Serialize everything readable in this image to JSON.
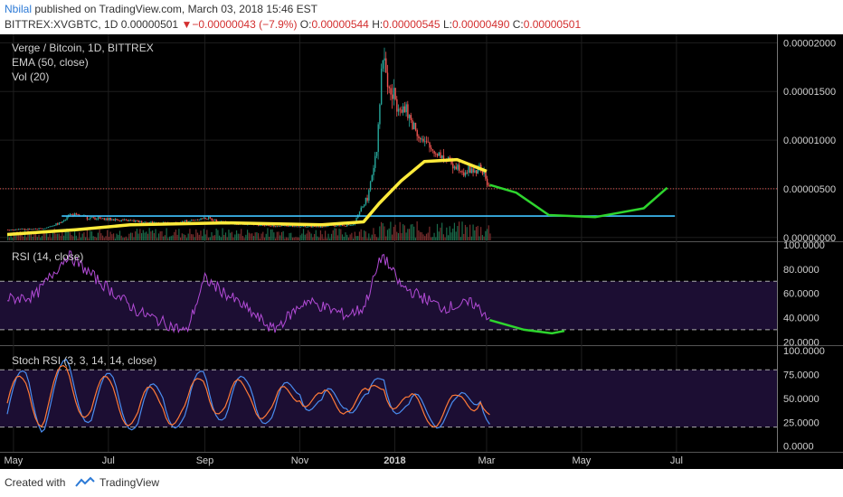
{
  "header": {
    "author": "Nbilal",
    "published": "published on TradingView.com, March 03, 2018 15:46 EST",
    "symbol": "BITTREX:XVGBTC, 1D",
    "last": "0.00000501",
    "change_arrow": "▼",
    "change": "−0.00000043 (−7.9%)",
    "o_label": "O:",
    "o_value": "0.00000544",
    "h_label": "H:",
    "h_value": "0.00000545",
    "l_label": "L:",
    "l_value": "0.00000490",
    "c_label": "C:",
    "c_value": "0.00000501"
  },
  "footer": {
    "created_with": "Created with",
    "brand": "TradingView"
  },
  "colors": {
    "background": "#000000",
    "grid": "#1e1e1e",
    "up": "#26a69a",
    "down": "#ef5350",
    "ema": "#ffeb3b",
    "support": "#40c4ff",
    "projection": "#2ed52e",
    "rsi": "#b24bd6",
    "stoch_k": "#4a8df0",
    "stoch_d": "#ff7a38",
    "band": "#1c0e33",
    "current_price": "#ef5350",
    "axis_text": "#d0d0d0",
    "icon": "#2c7ad6"
  },
  "chart_data": [
    {
      "type": "candlestick",
      "panel": "price",
      "labels": [
        "Verge / Bitcoin, 1D, BITTREX",
        "EMA (50, close)",
        "Vol (20)"
      ],
      "y_ticks": [
        "0.00002000",
        "0.00001500",
        "0.00001000",
        "0.00000500",
        "0.00000000"
      ],
      "y_tick_values": [
        2e-05,
        1.5e-05,
        1e-05,
        5e-06,
        0
      ],
      "ylim": [
        -3e-07,
        2.05e-05
      ],
      "current_price": 5.01e-06,
      "x_ticks": [
        "May",
        "Jul",
        "Sep",
        "Nov",
        "2018",
        "Mar",
        "May",
        "Jul"
      ],
      "x_tick_dates": [
        "2017-05-01",
        "2017-07-01",
        "2017-09-01",
        "2017-11-01",
        "2018-01-01",
        "2018-03-01",
        "2018-05-01",
        "2018-07-01"
      ],
      "x_range": [
        "2017-04-27",
        "2018-09-03"
      ],
      "price_path": [
        [
          "2017-04-27",
          8e-07
        ],
        [
          "2017-05-20",
          9e-07
        ],
        [
          "2017-06-01",
          1.6e-06
        ],
        [
          "2017-06-05",
          2.4e-06
        ],
        [
          "2017-06-20",
          2e-06
        ],
        [
          "2017-07-15",
          1.7e-06
        ],
        [
          "2017-08-10",
          1.4e-06
        ],
        [
          "2017-09-01",
          2e-06
        ],
        [
          "2017-09-20",
          1.4e-06
        ],
        [
          "2017-10-15",
          1.2e-06
        ],
        [
          "2017-11-10",
          1.1e-06
        ],
        [
          "2017-12-05",
          1.3e-06
        ],
        [
          "2017-12-15",
          4.5e-06
        ],
        [
          "2017-12-20",
          9.5e-06
        ],
        [
          "2017-12-24",
          1.9e-05
        ],
        [
          "2017-12-28",
          1.5e-05
        ],
        [
          "2018-01-05",
          1.35e-05
        ],
        [
          "2018-01-20",
          9.5e-06
        ],
        [
          "2018-02-05",
          7.8e-06
        ],
        [
          "2018-02-15",
          6.8e-06
        ],
        [
          "2018-02-25",
          7e-06
        ],
        [
          "2018-03-03",
          5e-06
        ]
      ],
      "ema50": [
        [
          "2017-04-27",
          3e-07
        ],
        [
          "2017-06-10",
          8e-07
        ],
        [
          "2017-07-15",
          1.3e-06
        ],
        [
          "2017-09-15",
          1.5e-06
        ],
        [
          "2017-11-15",
          1.3e-06
        ],
        [
          "2017-12-12",
          1.6e-06
        ],
        [
          "2017-12-22",
          3.5e-06
        ],
        [
          "2018-01-05",
          5.8e-06
        ],
        [
          "2018-01-20",
          7.8e-06
        ],
        [
          "2018-02-10",
          8e-06
        ],
        [
          "2018-03-01",
          6.8e-06
        ]
      ],
      "support_line": {
        "y": 2.2e-06,
        "from": "2017-06-01",
        "to": "2018-06-30"
      },
      "projection": [
        [
          "2018-03-03",
          5.4e-06
        ],
        [
          "2018-03-20",
          4.6e-06
        ],
        [
          "2018-04-10",
          2.3e-06
        ],
        [
          "2018-05-10",
          2.1e-06
        ],
        [
          "2018-06-10",
          3e-06
        ],
        [
          "2018-06-25",
          5.1e-06
        ]
      ]
    },
    {
      "type": "line",
      "panel": "rsi",
      "label": "RSI (14, close)",
      "y_ticks": [
        "100.0000",
        "80.0000",
        "60.0000",
        "40.0000",
        "20.0000"
      ],
      "y_tick_values": [
        100,
        80,
        60,
        40,
        20
      ],
      "ylim": [
        18,
        100
      ],
      "bands": [
        70,
        30
      ],
      "x": [
        "2017-04-27",
        "2017-05-15",
        "2017-06-05",
        "2017-06-25",
        "2017-07-20",
        "2017-08-20",
        "2017-09-01",
        "2017-09-25",
        "2017-10-15",
        "2017-11-05",
        "2017-12-01",
        "2017-12-12",
        "2017-12-24",
        "2018-01-05",
        "2018-02-01",
        "2018-02-20",
        "2018-03-03"
      ],
      "values": [
        55,
        58,
        92,
        70,
        45,
        28,
        72,
        50,
        30,
        54,
        42,
        48,
        92,
        66,
        48,
        52,
        40
      ],
      "projection": [
        [
          "2018-03-03",
          38
        ],
        [
          "2018-03-25",
          30
        ],
        [
          "2018-04-12",
          27
        ],
        [
          "2018-04-20",
          29
        ]
      ]
    },
    {
      "type": "line",
      "panel": "stoch_rsi",
      "label": "Stoch RSI (3, 3, 14, 14, close)",
      "y_ticks": [
        "100.0000",
        "75.0000",
        "50.0000",
        "25.0000",
        "0.0000"
      ],
      "y_tick_values": [
        100,
        75,
        50,
        25,
        0
      ],
      "ylim": [
        -5,
        102
      ],
      "bands": [
        80,
        20
      ],
      "x": [
        "2017-04-27",
        "2017-05-10",
        "2017-05-20",
        "2017-06-05",
        "2017-06-20",
        "2017-07-05",
        "2017-07-20",
        "2017-08-05",
        "2017-08-20",
        "2017-09-01",
        "2017-09-15",
        "2017-10-01",
        "2017-10-15",
        "2017-11-01",
        "2017-11-15",
        "2017-12-01",
        "2017-12-15",
        "2017-12-25",
        "2018-01-10",
        "2018-01-25",
        "2018-02-10",
        "2018-02-25",
        "2018-03-03"
      ],
      "series": [
        {
          "values": [
            20,
            85,
            20,
            95,
            30,
            70,
            10,
            60,
            5,
            98,
            20,
            80,
            5,
            90,
            15,
            70,
            20,
            100,
            10,
            40,
            10,
            85,
            10
          ]
        },
        {
          "values": [
            25,
            80,
            25,
            90,
            35,
            65,
            15,
            55,
            10,
            95,
            25,
            75,
            10,
            85,
            20,
            65,
            25,
            95,
            15,
            38,
            14,
            80,
            12
          ]
        }
      ]
    }
  ]
}
